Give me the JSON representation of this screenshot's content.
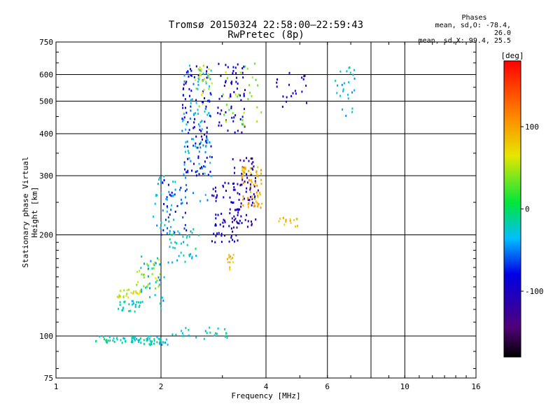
{
  "header": {
    "title_line1": "Tromsø 20150324 22:58:00–22:59:43",
    "title_line2": "RwPretec (8p)",
    "phases_title": "Phases",
    "phases_o": "mean, sd,O: -78.4, 26.0",
    "phases_x": "mean, sd,X:  99.4, 25.5"
  },
  "colorbar": {
    "label": "[deg]",
    "ticks": [
      "100",
      "0",
      "-100"
    ],
    "range": [
      -180,
      180
    ]
  },
  "chart_data": {
    "type": "scatter",
    "title": "Tromsø 20150324 22:58:00–22:59:43",
    "subtitle": "RwPretec (8p)",
    "xlabel": "Frequency [MHz]",
    "ylabel": "Stationary phase Virtual Height [km]",
    "x_scale": "log",
    "y_scale": "log",
    "xlim": [
      1,
      16
    ],
    "ylim": [
      75,
      750
    ],
    "xticks": [
      1,
      2,
      4,
      6,
      10,
      16
    ],
    "xtick_labels": [
      "1",
      "2",
      "4",
      "6",
      "10",
      "16"
    ],
    "yticks": [
      75,
      100,
      200,
      300,
      400,
      500,
      600,
      750
    ],
    "ytick_labels": [
      "75",
      "100",
      "200",
      "300",
      "400",
      "500",
      "600",
      "750"
    ],
    "grid": true,
    "color_scale": "phase (deg), rainbow, -180 to 180",
    "clusters": [
      {
        "x": [
          1.3,
          1.75
        ],
        "y": [
          95,
          100
        ],
        "phase": -20,
        "n": 40
      },
      {
        "x": [
          1.75,
          2.1
        ],
        "y": [
          94,
          100
        ],
        "phase": -25,
        "n": 35
      },
      {
        "x": [
          1.5,
          1.75
        ],
        "y": [
          118,
          128
        ],
        "phase": -20,
        "n": 25
      },
      {
        "x": [
          1.5,
          1.75
        ],
        "y": [
          130,
          138
        ],
        "phase": 60,
        "n": 25
      },
      {
        "x": [
          1.7,
          2.0
        ],
        "y": [
          138,
          170
        ],
        "phase": 45,
        "n": 25
      },
      {
        "x": [
          1.75,
          2.05
        ],
        "y": [
          120,
          175
        ],
        "phase": -30,
        "n": 30
      },
      {
        "x": [
          1.9,
          2.2
        ],
        "y": [
          200,
          300
        ],
        "phase": -35,
        "n": 35
      },
      {
        "x": [
          2.0,
          2.4
        ],
        "y": [
          200,
          300
        ],
        "phase": -70,
        "n": 35
      },
      {
        "x": [
          2.1,
          2.6
        ],
        "y": [
          165,
          210
        ],
        "phase": -25,
        "n": 35
      },
      {
        "x": [
          2.3,
          2.8
        ],
        "y": [
          250,
          640
        ],
        "phase": -35,
        "n": 90
      },
      {
        "x": [
          2.3,
          2.8
        ],
        "y": [
          300,
          640
        ],
        "phase": -90,
        "n": 90
      },
      {
        "x": [
          2.5,
          2.8
        ],
        "y": [
          480,
          640
        ],
        "phase": 50,
        "n": 25
      },
      {
        "x": [
          2.8,
          3.4
        ],
        "y": [
          190,
          290
        ],
        "phase": -95,
        "n": 70
      },
      {
        "x": [
          2.9,
          3.5
        ],
        "y": [
          400,
          650
        ],
        "phase": -95,
        "n": 60
      },
      {
        "x": [
          3.0,
          3.9
        ],
        "y": [
          420,
          650
        ],
        "phase": 40,
        "n": 30
      },
      {
        "x": [
          3.2,
          3.8
        ],
        "y": [
          210,
          340
        ],
        "phase": -110,
        "n": 70
      },
      {
        "x": [
          3.4,
          3.9
        ],
        "y": [
          240,
          320
        ],
        "phase": 95,
        "n": 60
      },
      {
        "x": [
          3.1,
          3.25
        ],
        "y": [
          155,
          175
        ],
        "phase": 80,
        "n": 12
      },
      {
        "x": [
          2.1,
          3.1
        ],
        "y": [
          98,
          106
        ],
        "phase": -25,
        "n": 25
      },
      {
        "x": [
          4.3,
          5.0
        ],
        "y": [
          210,
          225
        ],
        "phase": 90,
        "n": 15
      },
      {
        "x": [
          4.2,
          5.3
        ],
        "y": [
          470,
          610
        ],
        "phase": -100,
        "n": 20
      },
      {
        "x": [
          6.3,
          7.2
        ],
        "y": [
          440,
          640
        ],
        "phase": -30,
        "n": 25
      }
    ]
  }
}
